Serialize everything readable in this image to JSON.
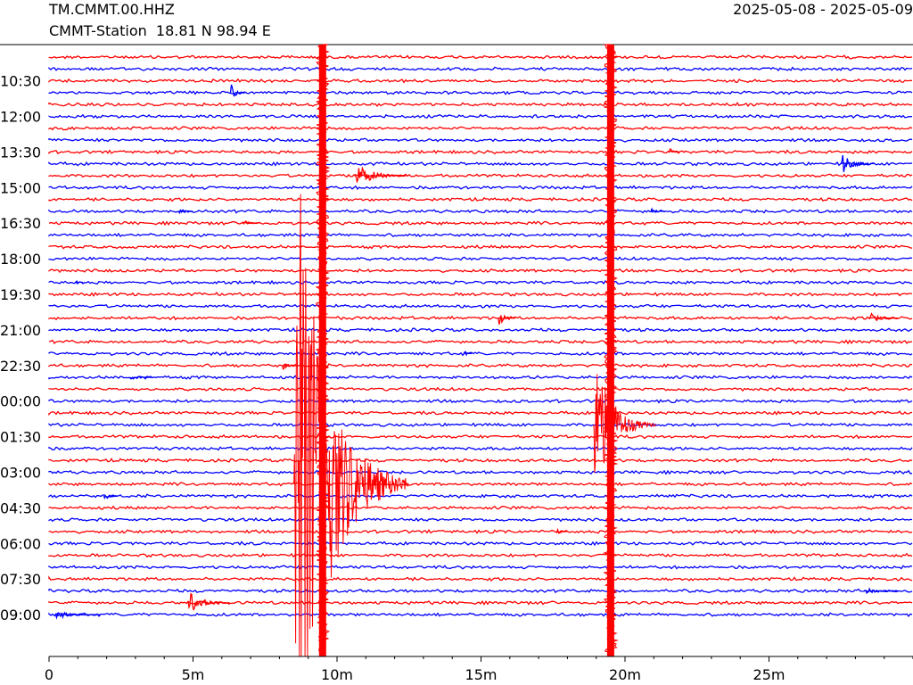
{
  "header": {
    "station_code": "TM.CMMT.00.HHZ",
    "station_desc": "CMMT-Station  18.81 N 98.94 E",
    "date_range": "2025-05-08 - 2025-05-09"
  },
  "chart_data": {
    "type": "helicorder",
    "title": "TM.CMMT.00.HHZ",
    "subtitle": "CMMT-Station  18.81 N 98.94 E",
    "date_range": "2025-05-08 - 2025-05-09",
    "xlim": [
      0,
      30
    ],
    "x_unit": "minutes",
    "x_ticks": [
      {
        "value": 0,
        "label": "0"
      },
      {
        "value": 5,
        "label": "5m"
      },
      {
        "value": 10,
        "label": "10m"
      },
      {
        "value": 15,
        "label": "15m"
      },
      {
        "value": 20,
        "label": "20m"
      },
      {
        "value": 25,
        "label": "25m"
      }
    ],
    "x_minor_step": 1,
    "trace_count": 48,
    "trace_minutes": 30,
    "first_trace_start": "09:00",
    "last_trace_end": "09:00",
    "y_ticks": [
      {
        "trace": 3,
        "label": "10:30"
      },
      {
        "trace": 6,
        "label": "12:00"
      },
      {
        "trace": 9,
        "label": "13:30"
      },
      {
        "trace": 12,
        "label": "15:00"
      },
      {
        "trace": 15,
        "label": "16:30"
      },
      {
        "trace": 18,
        "label": "18:00"
      },
      {
        "trace": 21,
        "label": "19:30"
      },
      {
        "trace": 24,
        "label": "21:00"
      },
      {
        "trace": 27,
        "label": "22:30"
      },
      {
        "trace": 30,
        "label": "00:00"
      },
      {
        "trace": 33,
        "label": "01:30"
      },
      {
        "trace": 36,
        "label": "03:00"
      },
      {
        "trace": 39,
        "label": "04:30"
      },
      {
        "trace": 42,
        "label": "06:00"
      },
      {
        "trace": 45,
        "label": "07:30"
      },
      {
        "trace": 48,
        "label": "09:00"
      }
    ],
    "colors": {
      "odd_trace": "#ff0000",
      "even_trace": "#0000ff",
      "axis": "#000000"
    },
    "events": [
      {
        "trace": 3,
        "minute": 6.3,
        "amplitude": 12,
        "duration": 0.5
      },
      {
        "trace": 8,
        "minute": 21.5,
        "amplitude": 8,
        "duration": 0.4
      },
      {
        "trace": 9,
        "minute": 27.5,
        "amplitude": 14,
        "duration": 1.2
      },
      {
        "trace": 10,
        "minute": 10.6,
        "amplitude": 16,
        "duration": 1.8
      },
      {
        "trace": 13,
        "minute": 4.5,
        "amplitude": 6,
        "duration": 0.5
      },
      {
        "trace": 13,
        "minute": 20.9,
        "amplitude": 5,
        "duration": 0.5
      },
      {
        "trace": 14,
        "minute": 6.7,
        "amplitude": 5,
        "duration": 0.6
      },
      {
        "trace": 19,
        "minute": 0.9,
        "amplitude": 4,
        "duration": 0.3
      },
      {
        "trace": 22,
        "minute": 15.6,
        "amplitude": 10,
        "duration": 0.6
      },
      {
        "trace": 22,
        "minute": 28.5,
        "amplitude": 8,
        "duration": 1.0
      },
      {
        "trace": 25,
        "minute": 14.4,
        "amplitude": 5,
        "duration": 0.3
      },
      {
        "trace": 26,
        "minute": 8.1,
        "amplitude": 5,
        "duration": 0.5
      },
      {
        "trace": 27,
        "minute": 2.8,
        "amplitude": 4,
        "duration": 0.8
      },
      {
        "trace": 37,
        "minute": 1.9,
        "amplitude": 6,
        "duration": 0.5
      },
      {
        "trace": 40,
        "minute": 17.6,
        "amplitude": 5,
        "duration": 0.4
      },
      {
        "trace": 45,
        "minute": 28.3,
        "amplitude": 6,
        "duration": 1.2
      },
      {
        "trace": 46,
        "minute": 4.8,
        "amplitude": 14,
        "duration": 1.5
      },
      {
        "trace": 47,
        "minute": 0.2,
        "amplitude": 5,
        "duration": 1.6
      }
    ],
    "saturated_signals": [
      {
        "minute": 9.5,
        "start_trace": 0,
        "end_trace": 47,
        "color": "#ff0000"
      },
      {
        "minute": 19.5,
        "start_trace": 0,
        "end_trace": 47,
        "color": "#ff0000"
      }
    ],
    "earthquakes": [
      {
        "trace": 36,
        "minute": 8.5,
        "amplitude": 420,
        "coda_minutes": 4.0,
        "color": "#ff0000"
      },
      {
        "trace": 31,
        "minute": 18.9,
        "amplitude": 95,
        "coda_minutes": 2.2,
        "color": "#ff0000"
      }
    ]
  }
}
